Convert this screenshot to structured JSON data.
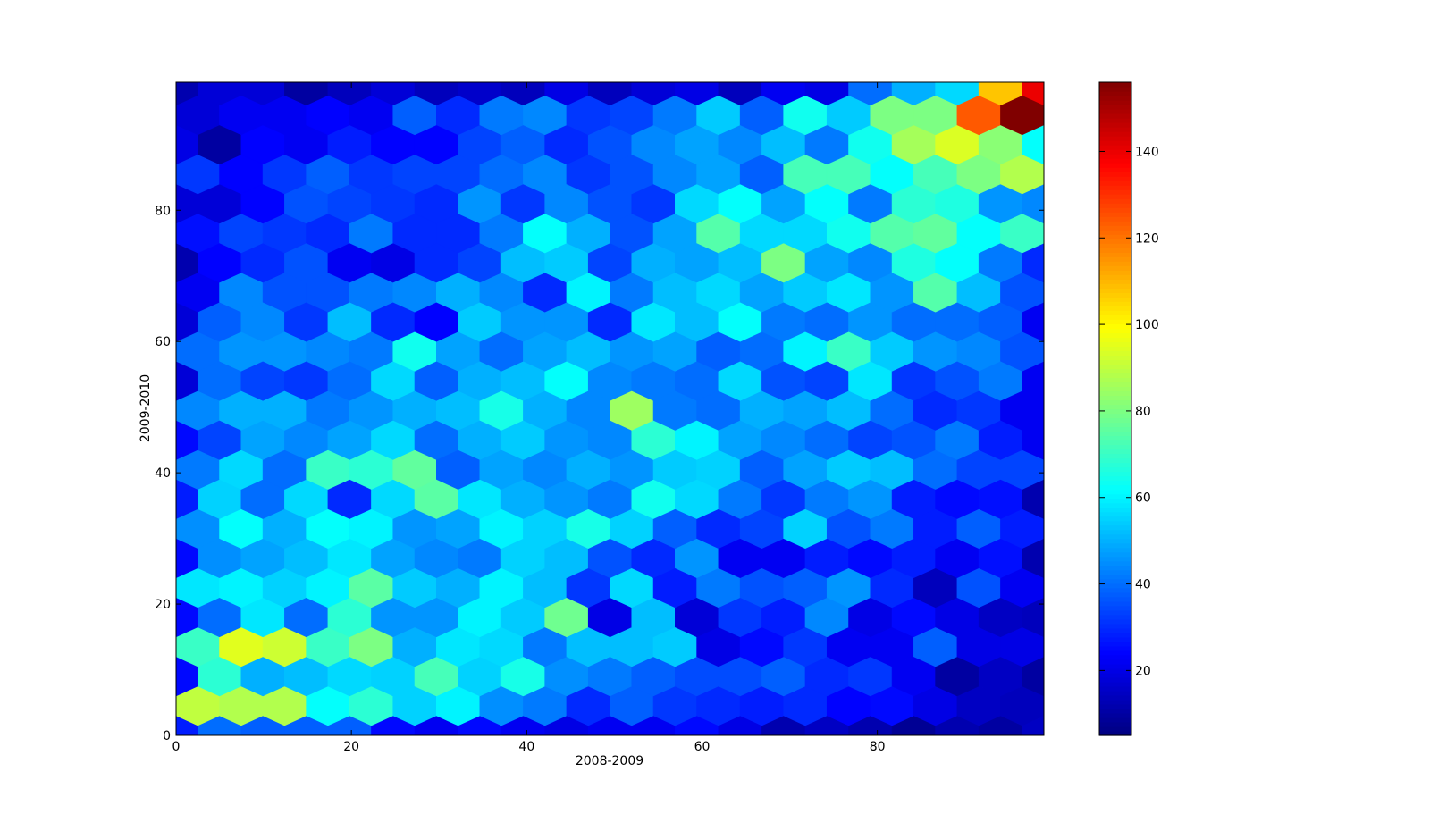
{
  "chart_data": {
    "type": "hexbin",
    "xlabel": "2008-2009",
    "ylabel": "2009-2010",
    "xlim": [
      0,
      99
    ],
    "ylim": [
      0,
      99.5
    ],
    "xticks": [
      0,
      20,
      40,
      60,
      80
    ],
    "yticks": [
      0,
      20,
      40,
      60,
      80
    ],
    "colormap": "jet",
    "clim": [
      5,
      156
    ],
    "colorbar_ticks": [
      20,
      40,
      60,
      80,
      100,
      120,
      140
    ],
    "hex_width": 4.95,
    "hex_height": 9,
    "hex_x": [
      [
        0,
        4.95,
        9.9,
        14.85,
        19.8,
        24.75,
        29.7,
        34.65,
        39.6,
        44.55,
        49.5,
        54.45,
        59.4,
        64.35,
        69.3,
        74.25,
        79.2,
        84.15,
        89.1,
        94.05,
        99
      ],
      [
        2.475,
        7.425,
        12.375,
        17.325,
        22.275,
        27.225,
        32.175,
        37.125,
        42.075,
        47.025,
        51.975,
        56.925,
        61.875,
        66.825,
        71.775,
        76.725,
        81.675,
        86.625,
        91.575,
        96.525
      ]
    ],
    "rows": [
      {
        "y": 0,
        "values": [
          28,
          40,
          38,
          38,
          38,
          25,
          22,
          25,
          22,
          20,
          22,
          22,
          25,
          20,
          12,
          15,
          12,
          8,
          12,
          10,
          15
        ]
      },
      {
        "y": 4.5,
        "values": [
          90,
          88,
          88,
          62,
          68,
          55,
          60,
          45,
          42,
          30,
          38,
          32,
          30,
          28,
          30,
          24,
          25,
          20,
          15,
          14
        ]
      },
      {
        "y": 9,
        "values": [
          25,
          68,
          50,
          52,
          56,
          55,
          72,
          55,
          65,
          45,
          42,
          38,
          35,
          35,
          38,
          30,
          32,
          22,
          10,
          15,
          10
        ]
      },
      {
        "y": 13.5,
        "values": [
          70,
          95,
          92,
          70,
          80,
          50,
          58,
          56,
          42,
          52,
          52,
          54,
          20,
          25,
          32,
          22,
          22,
          38,
          20,
          20
        ]
      },
      {
        "y": 18,
        "values": [
          25,
          40,
          58,
          40,
          68,
          46,
          46,
          60,
          54,
          78,
          20,
          52,
          18,
          32,
          28,
          44,
          20,
          25,
          20,
          15,
          14
        ]
      },
      {
        "y": 22.5,
        "values": [
          58,
          60,
          55,
          60,
          75,
          54,
          50,
          60,
          52,
          32,
          56,
          28,
          42,
          36,
          38,
          46,
          30,
          14,
          36,
          22
        ]
      },
      {
        "y": 27,
        "values": [
          25,
          45,
          48,
          52,
          58,
          48,
          44,
          42,
          55,
          52,
          36,
          30,
          46,
          22,
          22,
          28,
          25,
          28,
          22,
          26,
          12
        ]
      },
      {
        "y": 31.5,
        "values": [
          45,
          62,
          50,
          62,
          60,
          46,
          48,
          60,
          55,
          65,
          55,
          38,
          30,
          34,
          55,
          36,
          42,
          28,
          38,
          28
        ]
      },
      {
        "y": 36,
        "values": [
          28,
          55,
          40,
          56,
          30,
          56,
          75,
          58,
          50,
          46,
          42,
          64,
          56,
          42,
          32,
          42,
          46,
          28,
          25,
          26,
          12
        ]
      },
      {
        "y": 40.5,
        "values": [
          42,
          56,
          40,
          70,
          68,
          76,
          38,
          48,
          44,
          50,
          46,
          54,
          55,
          38,
          48,
          54,
          52,
          40,
          34,
          34
        ]
      },
      {
        "y": 45,
        "values": [
          25,
          34,
          48,
          44,
          48,
          56,
          40,
          50,
          54,
          46,
          44,
          68,
          60,
          48,
          44,
          40,
          34,
          36,
          42,
          28,
          22
        ]
      },
      {
        "y": 49.5,
        "values": [
          44,
          50,
          50,
          42,
          46,
          50,
          52,
          65,
          50,
          44,
          85,
          42,
          40,
          50,
          48,
          52,
          40,
          30,
          32,
          22
        ]
      },
      {
        "y": 54,
        "values": [
          18,
          40,
          34,
          32,
          40,
          56,
          38,
          50,
          52,
          62,
          44,
          42,
          40,
          56,
          36,
          34,
          58,
          32,
          36,
          42,
          22
        ]
      },
      {
        "y": 58.5,
        "values": [
          40,
          46,
          46,
          44,
          42,
          64,
          48,
          40,
          48,
          52,
          46,
          48,
          38,
          40,
          60,
          70,
          54,
          46,
          44,
          36
        ]
      },
      {
        "y": 63,
        "values": [
          18,
          38,
          44,
          32,
          52,
          30,
          24,
          54,
          46,
          46,
          30,
          58,
          52,
          62,
          42,
          40,
          46,
          40,
          40,
          38,
          22
        ]
      },
      {
        "y": 67.5,
        "values": [
          22,
          44,
          36,
          36,
          42,
          44,
          50,
          44,
          30,
          60,
          42,
          52,
          56,
          48,
          54,
          58,
          46,
          74,
          52,
          36
        ]
      },
      {
        "y": 72,
        "values": [
          12,
          24,
          30,
          36,
          22,
          20,
          30,
          34,
          52,
          54,
          34,
          50,
          48,
          52,
          80,
          48,
          44,
          66,
          62,
          42,
          30
        ]
      },
      {
        "y": 76.5,
        "values": [
          26,
          34,
          32,
          30,
          42,
          30,
          30,
          42,
          62,
          50,
          36,
          48,
          74,
          56,
          56,
          64,
          74,
          76,
          62,
          70
        ]
      },
      {
        "y": 81,
        "values": [
          18,
          18,
          24,
          36,
          34,
          32,
          30,
          46,
          32,
          44,
          36,
          32,
          56,
          62,
          48,
          62,
          42,
          68,
          66,
          46,
          44
        ]
      },
      {
        "y": 85.5,
        "values": [
          32,
          24,
          32,
          38,
          32,
          34,
          34,
          40,
          44,
          32,
          36,
          44,
          48,
          38,
          72,
          72,
          62,
          72,
          80,
          88
        ]
      },
      {
        "y": 90,
        "values": [
          20,
          10,
          24,
          22,
          28,
          24,
          24,
          34,
          38,
          30,
          36,
          44,
          48,
          44,
          52,
          42,
          64,
          86,
          94,
          82,
          62
        ]
      },
      {
        "y": 94.5,
        "values": [
          18,
          22,
          22,
          24,
          22,
          38,
          30,
          42,
          44,
          32,
          34,
          42,
          54,
          38,
          64,
          54,
          80,
          80,
          124,
          156
        ]
      },
      {
        "y": 99,
        "values": [
          12,
          18,
          18,
          10,
          14,
          18,
          14,
          16,
          14,
          20,
          14,
          18,
          20,
          14,
          22,
          20,
          40,
          50,
          56,
          108,
          140
        ]
      }
    ]
  }
}
